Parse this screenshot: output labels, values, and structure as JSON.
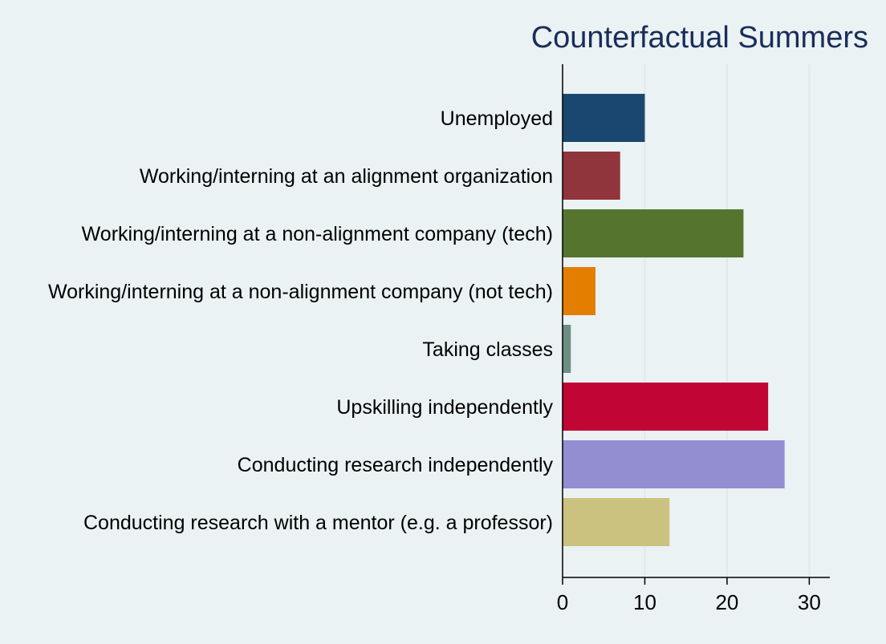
{
  "chart_data": {
    "type": "bar",
    "orientation": "horizontal",
    "title": "Counterfactual Summers",
    "xlabel": "",
    "ylabel": "",
    "categories": [
      "Unemployed",
      "Working/interning at an alignment organization",
      "Working/interning at a non-alignment company (tech)",
      "Working/interning at a non-alignment company (not tech)",
      "Taking classes",
      "Upskilling independently",
      "Conducting research independently",
      "Conducting research with a mentor (e.g. a professor)"
    ],
    "values": [
      10,
      7,
      22,
      4,
      1,
      25,
      27,
      13
    ],
    "colors": [
      "#1a476f",
      "#90353b",
      "#55752f",
      "#e37e00",
      "#6e8e84",
      "#c10534",
      "#938dd2",
      "#cac27e"
    ],
    "xlim": [
      0,
      32.5
    ],
    "xticks": [
      0,
      10,
      20,
      30
    ],
    "grid": true,
    "legend": "none"
  }
}
